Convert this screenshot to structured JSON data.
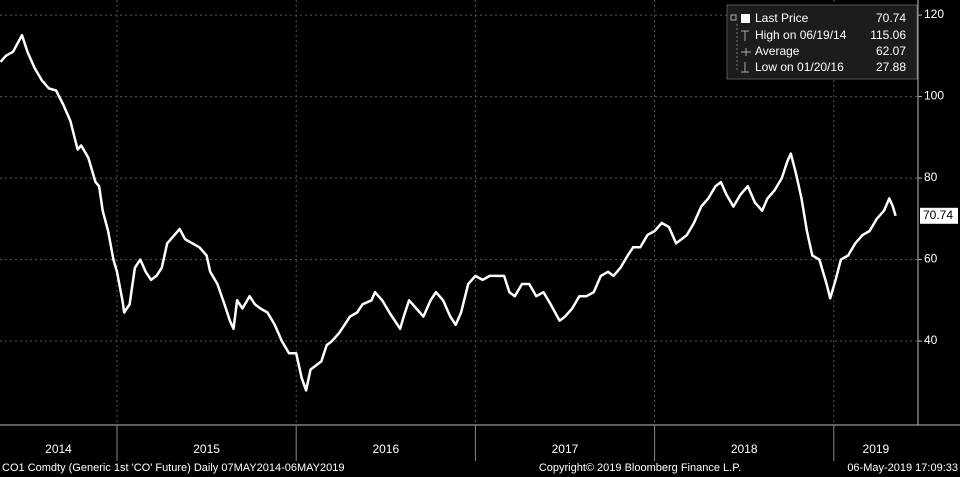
{
  "chart_data": {
    "type": "line",
    "series": [
      {
        "name": "Last Price",
        "color": "#ffffff",
        "x": [
          2014.35,
          2014.38,
          2014.42,
          2014.45,
          2014.47,
          2014.5,
          2014.54,
          2014.58,
          2014.62,
          2014.66,
          2014.7,
          2014.74,
          2014.78,
          2014.8,
          2014.84,
          2014.88,
          2014.9,
          2014.92,
          2014.95,
          2014.98,
          2015.0,
          2015.03,
          2015.04,
          2015.07,
          2015.1,
          2015.13,
          2015.16,
          2015.19,
          2015.22,
          2015.25,
          2015.28,
          2015.32,
          2015.35,
          2015.38,
          2015.42,
          2015.46,
          2015.5,
          2015.52,
          2015.56,
          2015.6,
          2015.63,
          2015.65,
          2015.67,
          2015.7,
          2015.74,
          2015.77,
          2015.8,
          2015.84,
          2015.88,
          2015.92,
          2015.96,
          2016.0,
          2016.03,
          2016.055,
          2016.08,
          2016.11,
          2016.14,
          2016.17,
          2016.2,
          2016.24,
          2016.27,
          2016.3,
          2016.34,
          2016.37,
          2016.42,
          2016.44,
          2016.48,
          2016.52,
          2016.55,
          2016.58,
          2016.6,
          2016.63,
          2016.67,
          2016.71,
          2016.75,
          2016.78,
          2016.82,
          2016.86,
          2016.89,
          2016.92,
          2016.96,
          2017.0,
          2017.04,
          2017.08,
          2017.12,
          2017.16,
          2017.19,
          2017.22,
          2017.26,
          2017.3,
          2017.34,
          2017.38,
          2017.42,
          2017.47,
          2017.5,
          2017.54,
          2017.58,
          2017.62,
          2017.66,
          2017.7,
          2017.74,
          2017.77,
          2017.81,
          2017.85,
          2017.88,
          2017.92,
          2017.96,
          2018.0,
          2018.04,
          2018.08,
          2018.12,
          2018.15,
          2018.18,
          2018.22,
          2018.26,
          2018.3,
          2018.34,
          2018.37,
          2018.4,
          2018.44,
          2018.48,
          2018.52,
          2018.56,
          2018.6,
          2018.63,
          2018.67,
          2018.71,
          2018.74,
          2018.76,
          2018.79,
          2018.82,
          2018.85,
          2018.88,
          2018.92,
          2018.96,
          2018.98,
          2019.01,
          2019.04,
          2019.08,
          2019.12,
          2019.16,
          2019.2,
          2019.24,
          2019.28,
          2019.31,
          2019.33,
          2019.345
        ],
        "values": [
          108.5,
          110,
          111,
          113.5,
          115.06,
          111,
          107,
          104,
          102,
          101.5,
          98,
          94,
          87,
          88,
          85,
          79,
          78,
          72,
          67,
          60,
          57,
          50,
          47,
          49,
          58,
          60,
          57,
          55,
          56,
          58,
          64,
          66,
          67.5,
          65,
          64,
          63,
          61,
          57,
          54,
          49,
          45,
          43,
          50,
          48,
          51,
          49,
          48,
          47,
          44,
          40,
          37,
          37,
          31,
          27.88,
          33,
          34,
          35,
          39,
          40,
          42,
          44,
          46,
          47,
          49,
          50,
          52,
          50,
          47,
          45,
          43,
          46,
          50,
          48,
          46,
          50,
          52,
          50,
          46,
          44,
          47,
          54,
          56,
          55,
          56,
          56,
          56,
          52,
          51,
          54,
          54,
          51,
          52,
          49,
          45,
          46,
          48,
          51,
          51,
          52,
          56,
          57,
          56,
          58,
          61,
          63,
          63,
          66,
          67,
          69,
          68,
          64,
          65,
          66,
          69,
          73,
          75,
          78,
          79,
          76,
          73,
          76,
          78,
          74,
          72,
          75,
          77,
          80,
          84,
          86,
          81,
          75,
          67,
          61,
          60,
          54,
          50.5,
          55,
          60,
          61,
          64,
          66,
          67,
          70,
          72,
          75,
          73,
          70.74
        ]
      }
    ],
    "legend_stats": [
      {
        "label": "High on 06/19/14",
        "value": "115.06"
      },
      {
        "label": "Average",
        "value": "62.07"
      },
      {
        "label": "Low on 01/20/16",
        "value": "27.88"
      }
    ],
    "xlim": [
      2014.347,
      2019.47
    ],
    "xticks": [
      2014,
      2015,
      2016,
      2017,
      2018,
      2019
    ],
    "ylim": [
      19.4,
      123.7
    ],
    "yticks": [
      40,
      60,
      80,
      100,
      120
    ],
    "grid": true,
    "footer": {
      "left": "CO1 Comdty (Generic 1st 'CO' Future)  Daily 07MAY2014-06MAY2019",
      "center": "Copyright© 2019 Bloomberg Finance L.P.",
      "right": "06-May-2019 17:09:33"
    }
  }
}
